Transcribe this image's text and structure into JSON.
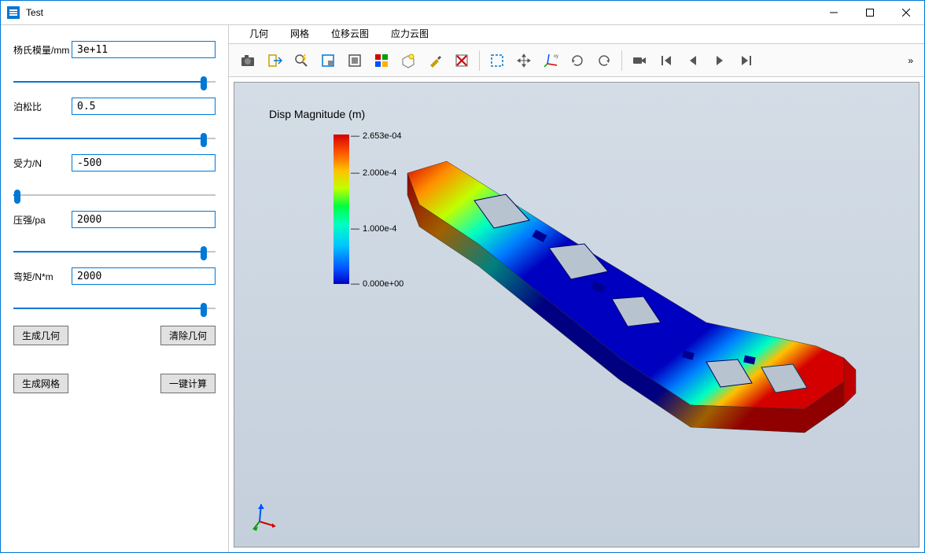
{
  "window": {
    "title": "Test"
  },
  "params": [
    {
      "label": "杨氏模量/mm",
      "value": "3e+11",
      "slider_pct": 94
    },
    {
      "label": "泊松比",
      "value": "0.5",
      "slider_pct": 94
    },
    {
      "label": "受力/N",
      "value": "-500",
      "slider_pct": 2
    },
    {
      "label": "压强/pa",
      "value": "2000",
      "slider_pct": 94
    },
    {
      "label": "弯矩/N*m",
      "value": "2000",
      "slider_pct": 94
    }
  ],
  "buttons": {
    "row1_left": "生成几何",
    "row1_right": "清除几何",
    "row2_left": "生成网格",
    "row2_right": "一键计算"
  },
  "tabs": [
    "几何",
    "网格",
    "位移云图",
    "应力云图"
  ],
  "toolbar_icons": [
    "camera",
    "export",
    "zoom-lightning",
    "zoom-area",
    "reset-box",
    "color-palette",
    "lightbulb-box",
    "brush",
    "erase-red",
    "select-dashed",
    "move-arrows",
    "axes-xyz",
    "rotate-cw",
    "rotate-ccw",
    "camera-video",
    "prev-first",
    "prev",
    "play",
    "next"
  ],
  "legend": {
    "title": "Disp Magnitude (m)",
    "ticks": [
      {
        "label": "2.653e-04",
        "pos": 0
      },
      {
        "label": "2.000e-4",
        "pos": 47
      },
      {
        "label": "1.000e-4",
        "pos": 118
      },
      {
        "label": "0.000e+00",
        "pos": 188
      }
    ],
    "gradient_colors": [
      "#d40000",
      "#ff5500",
      "#ffc000",
      "#c0ff00",
      "#00ff40",
      "#00ffc0",
      "#00c8ff",
      "#0050ff",
      "#0000c0"
    ]
  },
  "viewport": {
    "background_top": "#d4dde6",
    "background_bottom": "#c4cfdc",
    "part_colors": {
      "max": "#d40000",
      "mid_high": "#ffc000",
      "mid": "#00ff40",
      "mid_low": "#00c8ff",
      "min": "#0000c0"
    }
  },
  "colors": {
    "accent": "#0078d4",
    "border": "#cccccc",
    "btn_bg": "#e1e1e1"
  }
}
